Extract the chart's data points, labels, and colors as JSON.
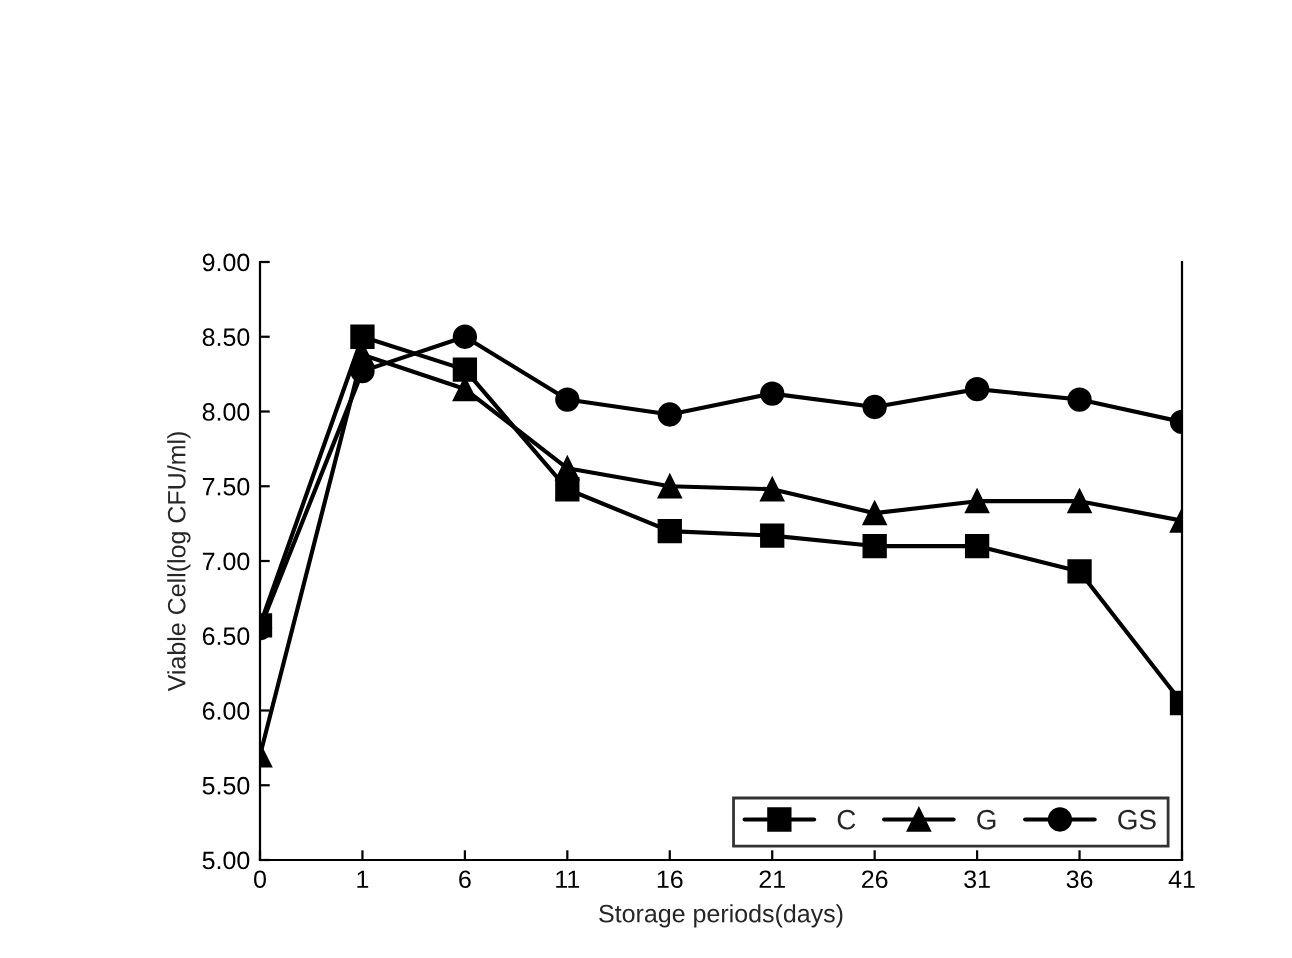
{
  "chart_data": {
    "type": "line",
    "xlabel": "Storage periods(days)",
    "ylabel": "Viable Cell(log CFU/ml)",
    "categories": [
      "0",
      "1",
      "6",
      "11",
      "16",
      "21",
      "26",
      "31",
      "36",
      "41"
    ],
    "series": [
      {
        "name": "C",
        "color": "#000000",
        "marker": "square",
        "values": [
          6.57,
          8.5,
          8.28,
          7.48,
          7.2,
          7.17,
          7.1,
          7.1,
          6.93,
          6.05
        ]
      },
      {
        "name": "G",
        "color": "#000000",
        "marker": "triangle",
        "values": [
          5.7,
          8.38,
          8.15,
          7.62,
          7.5,
          7.48,
          7.32,
          7.4,
          7.4,
          7.27
        ]
      },
      {
        "name": "GS",
        "color": "#000000",
        "marker": "circle",
        "values": [
          6.55,
          8.27,
          8.5,
          8.08,
          7.98,
          8.12,
          8.03,
          8.15,
          8.08,
          7.93
        ]
      }
    ],
    "ylim": [
      5.0,
      9.0
    ],
    "yticks": [
      {
        "value": 5.0,
        "label": "5.00"
      },
      {
        "value": 5.5,
        "label": "5.50"
      },
      {
        "value": 6.0,
        "label": "6.00"
      },
      {
        "value": 6.5,
        "label": "6.50"
      },
      {
        "value": 7.0,
        "label": "7.00"
      },
      {
        "value": 7.5,
        "label": "7.50"
      },
      {
        "value": 8.0,
        "label": "8.00"
      },
      {
        "value": 8.5,
        "label": "8.50"
      },
      {
        "value": 9.0,
        "label": "9.00"
      }
    ],
    "grid": false,
    "legend": "bottom right",
    "line_style": "solid"
  }
}
